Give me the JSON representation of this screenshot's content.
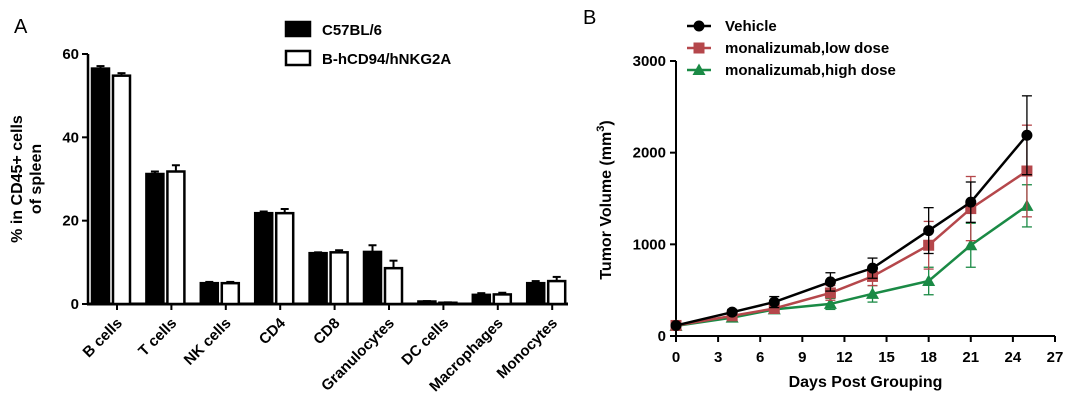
{
  "chart_data": [
    {
      "panel": "A",
      "type": "bar",
      "title": "",
      "xlabel": "",
      "ylabel_lines": [
        "% in CD45+ cells",
        "of spleen"
      ],
      "ylim": [
        0,
        60
      ],
      "yticks": [
        0,
        20,
        40,
        60
      ],
      "categories": [
        "B cells",
        "T cells",
        "NK cells",
        "CD4",
        "CD8",
        "Granulocytes",
        "DC cells",
        "Macrophages",
        "Monocytes"
      ],
      "series": [
        {
          "name": "C57BL/6",
          "fill": "#000000",
          "values": [
            56.5,
            31.2,
            5.0,
            21.8,
            12.2,
            12.5,
            0.6,
            2.2,
            5.0
          ],
          "errors": [
            0.6,
            0.6,
            0.3,
            0.4,
            0.2,
            1.6,
            0.1,
            0.4,
            0.5
          ]
        },
        {
          "name": "B-hCD94/hNKG2A",
          "fill": "#ffffff",
          "values": [
            54.8,
            31.8,
            5.0,
            21.8,
            12.4,
            8.6,
            0.3,
            2.3,
            5.5
          ],
          "errors": [
            0.6,
            1.5,
            0.3,
            1.0,
            0.5,
            1.8,
            0.1,
            0.4,
            1.0
          ]
        }
      ],
      "legend_position": "top-right"
    },
    {
      "panel": "B",
      "type": "line",
      "title": "",
      "xlabel": "Days Post Grouping",
      "ylabel": "Tumor Volume (mm",
      "ylabel_sup": "3",
      "ylabel_end": ")",
      "xlim": [
        0,
        27
      ],
      "ylim": [
        0,
        3000
      ],
      "xticks": [
        0,
        3,
        6,
        9,
        12,
        15,
        18,
        21,
        24,
        27
      ],
      "yticks": [
        0,
        1000,
        2000,
        3000
      ],
      "x": [
        0,
        4,
        7,
        11,
        14,
        18,
        21,
        25
      ],
      "series": [
        {
          "name": "Vehicle",
          "color": "#000000",
          "marker": "circle",
          "values": [
            115,
            260,
            370,
            590,
            740,
            1150,
            1460,
            2190
          ],
          "errors": [
            20,
            30,
            60,
            100,
            110,
            250,
            220,
            430
          ]
        },
        {
          "name": "monalizumab,low dose",
          "color": "#b5474b",
          "marker": "square",
          "values": [
            115,
            220,
            300,
            470,
            650,
            990,
            1390,
            1800
          ],
          "errors": [
            20,
            30,
            40,
            80,
            100,
            260,
            350,
            500
          ]
        },
        {
          "name": "monalizumab,high dose",
          "color": "#1a8a45",
          "marker": "triangle",
          "values": [
            110,
            200,
            290,
            350,
            460,
            600,
            990,
            1420
          ],
          "errors": [
            15,
            25,
            35,
            60,
            90,
            150,
            240,
            230
          ]
        }
      ],
      "legend_position": "top-left"
    }
  ]
}
